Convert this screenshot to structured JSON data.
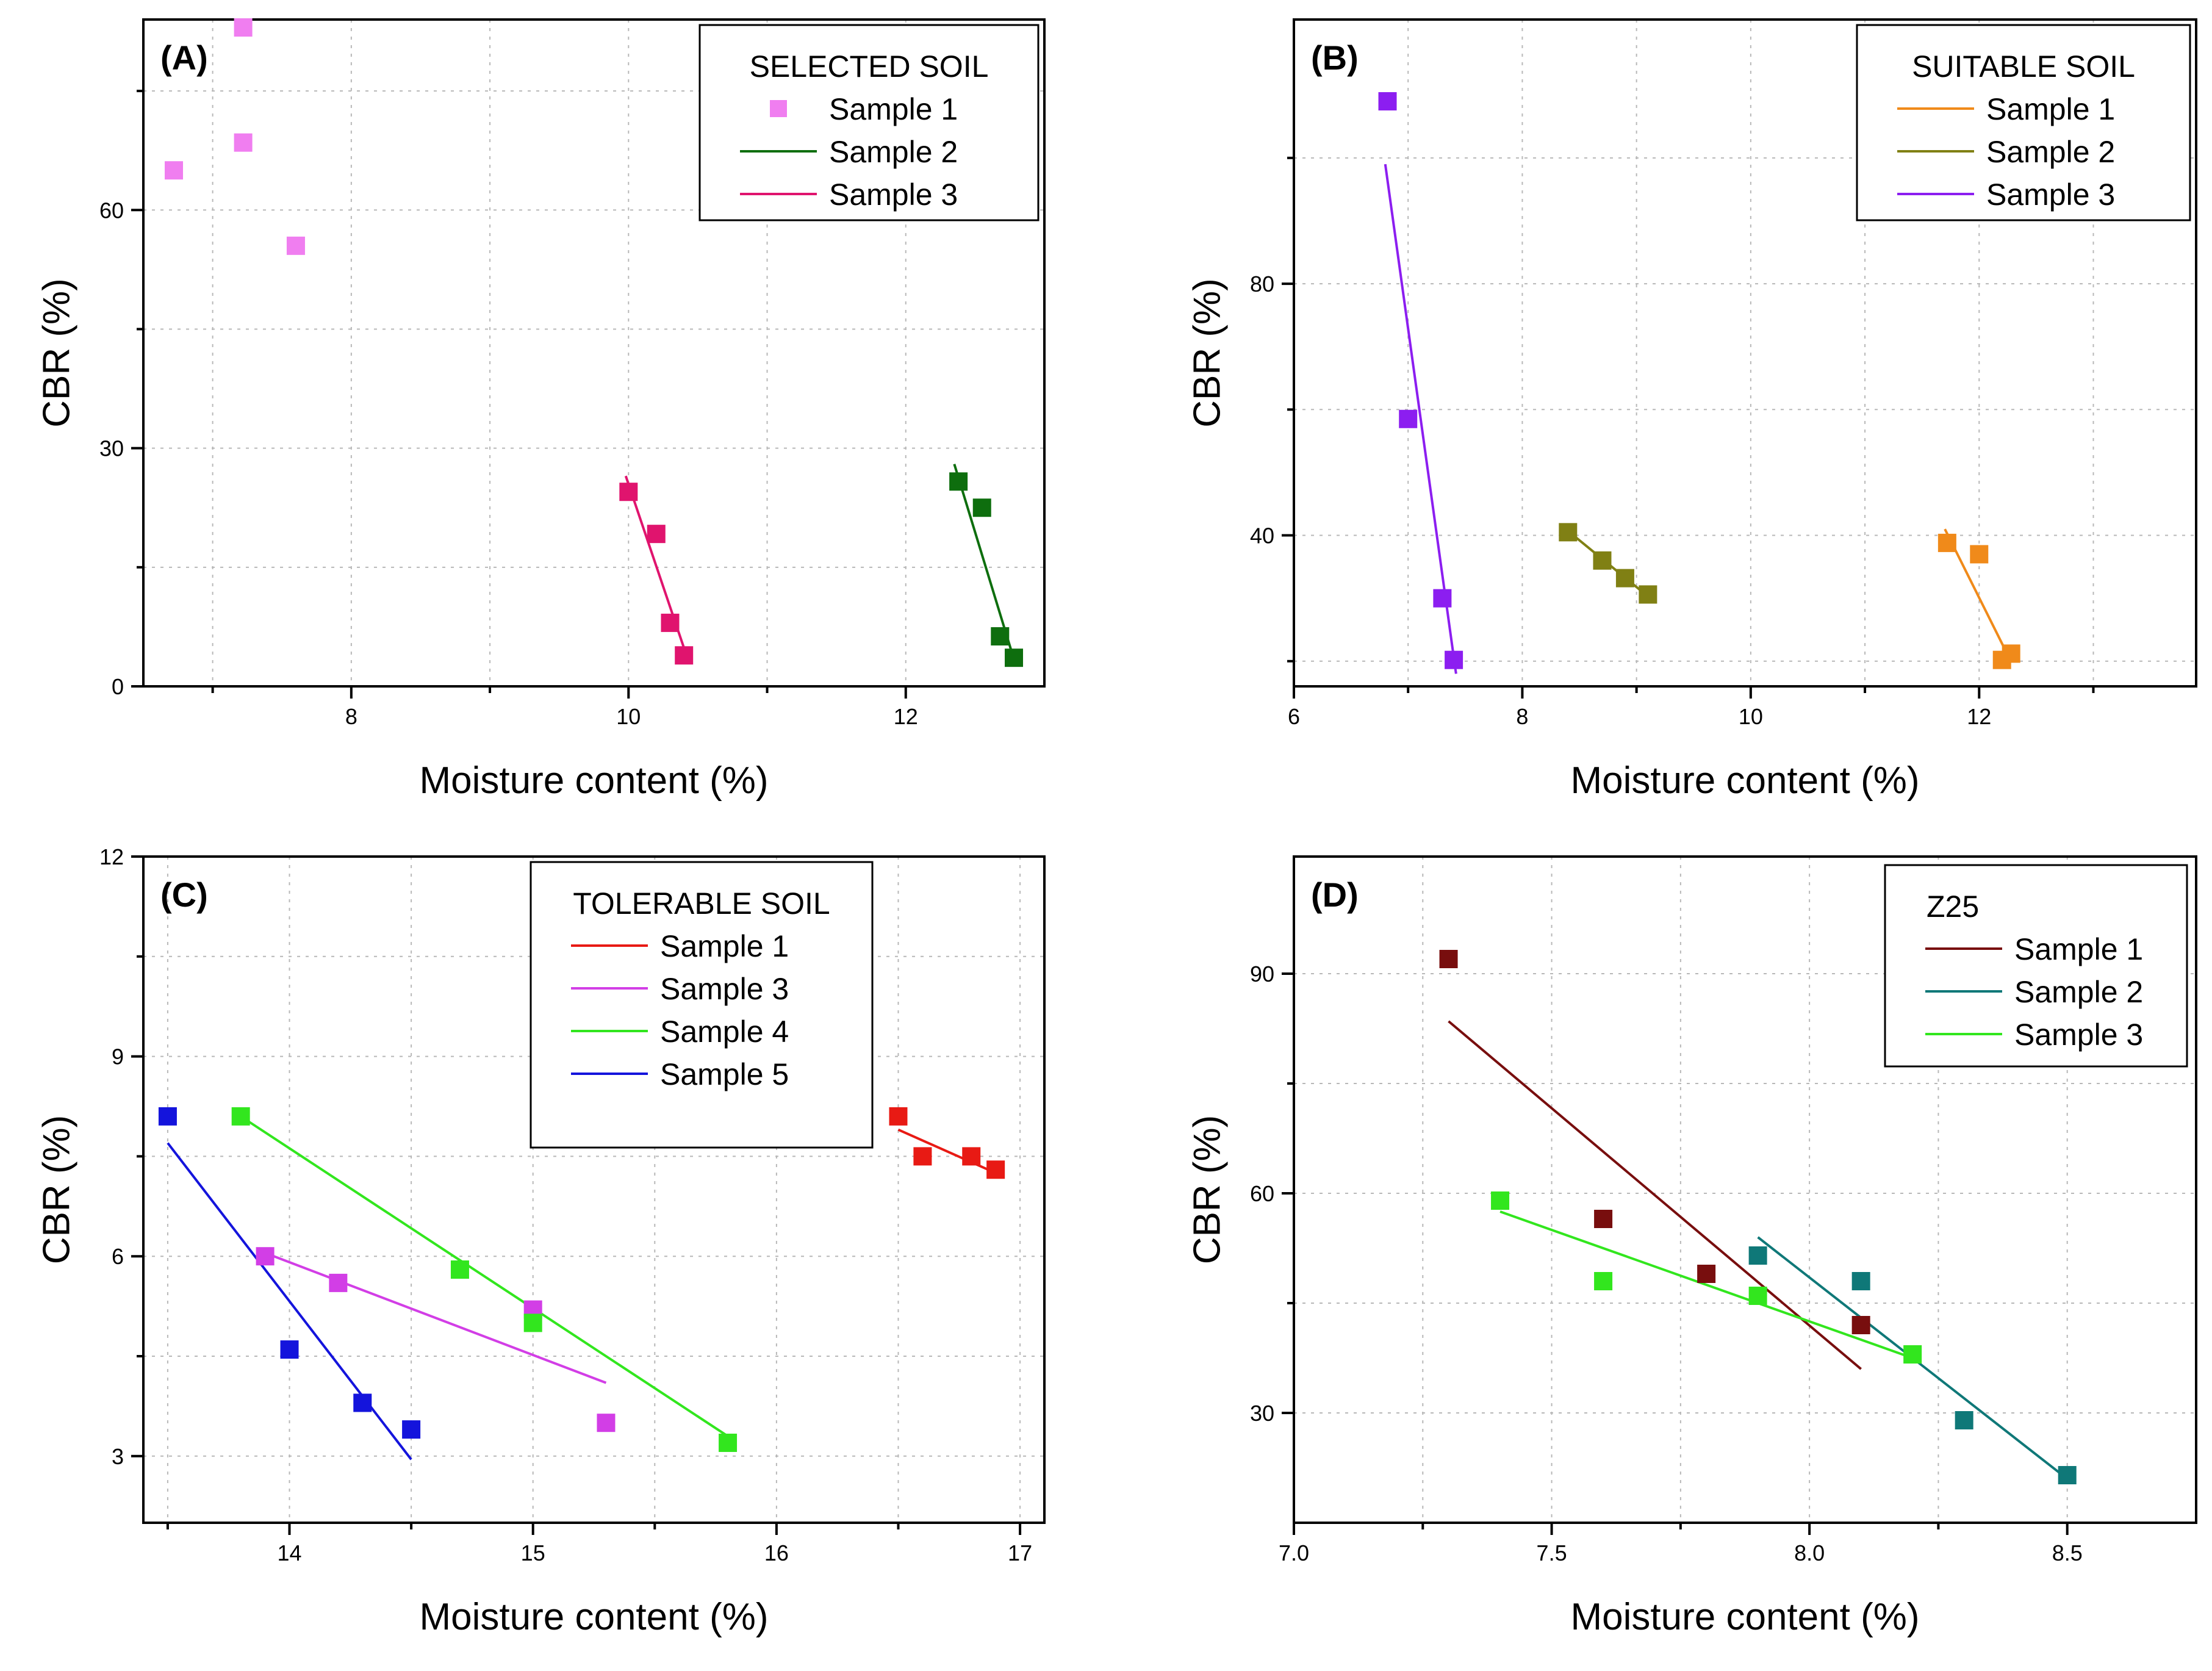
{
  "chart_data": [
    {
      "type": "scatter",
      "panel_label": "(A)",
      "xlabel": "Moisture content (%)",
      "ylabel": "CBR (%)",
      "xlim": [
        6.5,
        13
      ],
      "ylim": [
        0,
        84
      ],
      "x_major_ticks": [
        8,
        10,
        12
      ],
      "x_minor_ticks": [
        7,
        9,
        11
      ],
      "y_major_ticks": [
        0,
        30,
        60
      ],
      "y_minor_ticks": [
        15,
        45,
        75
      ],
      "grid": true,
      "legend_title": "SELECTED SOIL",
      "legend_position": "top-right",
      "series": [
        {
          "name": "Sample 1",
          "color": "#f07ef0",
          "legend": "marker",
          "points": [
            [
              6.72,
              65.0
            ],
            [
              7.22,
              83.0
            ],
            [
              7.22,
              68.5
            ],
            [
              7.6,
              55.5
            ]
          ],
          "fit": null
        },
        {
          "name": "Sample 2",
          "color": "#0e6e0e",
          "legend": "line",
          "points": [
            [
              12.38,
              25.8
            ],
            [
              12.55,
              22.5
            ],
            [
              12.68,
              6.3
            ],
            [
              12.78,
              3.6
            ]
          ],
          "fit": [
            [
              12.35,
              28.0
            ],
            [
              12.77,
              4.0
            ]
          ]
        },
        {
          "name": "Sample 3",
          "color": "#e0146e",
          "legend": "line",
          "points": [
            [
              10.0,
              24.5
            ],
            [
              10.2,
              19.2
            ],
            [
              10.3,
              8.0
            ],
            [
              10.4,
              3.9
            ]
          ],
          "fit": [
            [
              9.98,
              26.5
            ],
            [
              10.42,
              3.8
            ]
          ]
        }
      ]
    },
    {
      "type": "scatter",
      "panel_label": "(B)",
      "xlabel": "Moisture content (%)",
      "ylabel": "CBR (%)",
      "xlim": [
        6,
        13.9
      ],
      "ylim": [
        16,
        122
      ],
      "x_major_ticks": [
        6,
        8,
        10,
        12
      ],
      "x_minor_ticks": [
        7,
        9,
        11,
        13
      ],
      "y_major_ticks": [
        40,
        80
      ],
      "y_minor_ticks": [
        20,
        60,
        100
      ],
      "grid": true,
      "legend_title": "SUITABLE SOIL",
      "legend_position": "top-right",
      "series": [
        {
          "name": "Sample 1",
          "color": "#f08a1a",
          "legend": "line",
          "points": [
            [
              11.72,
              38.8
            ],
            [
              12.0,
              37.0
            ],
            [
              12.2,
              20.2
            ],
            [
              12.28,
              21.2
            ]
          ],
          "fit": [
            [
              11.7,
              41.0
            ],
            [
              12.25,
              21.0
            ]
          ]
        },
        {
          "name": "Sample 2",
          "color": "#808014",
          "legend": "line",
          "points": [
            [
              8.4,
              40.5
            ],
            [
              8.7,
              36.0
            ],
            [
              8.9,
              33.2
            ],
            [
              9.1,
              30.6
            ]
          ],
          "fit": [
            [
              8.38,
              41.0
            ],
            [
              9.1,
              30.3
            ]
          ]
        },
        {
          "name": "Sample 3",
          "color": "#8c1ef0",
          "legend": "line",
          "points": [
            [
              6.82,
              109.0
            ],
            [
              7.0,
              58.5
            ],
            [
              7.3,
              30.0
            ],
            [
              7.4,
              20.2
            ]
          ],
          "fit": [
            [
              6.8,
              99.0
            ],
            [
              7.42,
              18.0
            ]
          ]
        }
      ]
    },
    {
      "type": "scatter",
      "panel_label": "(C)",
      "xlabel": "Moisture content (%)",
      "ylabel": "CBR (%)",
      "xlim": [
        13.4,
        17.1
      ],
      "ylim": [
        2,
        12
      ],
      "x_major_ticks": [
        14,
        15,
        16,
        17
      ],
      "x_minor_ticks": [
        13.5,
        14.5,
        15.5,
        16.5
      ],
      "y_major_ticks": [
        3,
        6,
        9,
        12
      ],
      "y_minor_ticks": [
        4.5,
        7.5,
        10.5
      ],
      "grid": true,
      "legend_title": "TOLERABLE SOIL",
      "legend_position": "top-right",
      "series": [
        {
          "name": "Sample 1",
          "color": "#e81a14",
          "legend": "line",
          "points": [
            [
              16.5,
              8.1
            ],
            [
              16.6,
              7.5
            ],
            [
              16.8,
              7.5
            ],
            [
              16.9,
              7.3
            ]
          ],
          "fit": [
            [
              16.5,
              7.9
            ],
            [
              16.9,
              7.25
            ]
          ]
        },
        {
          "name": "Sample 3",
          "color": "#d23ee6",
          "legend": "line",
          "points": [
            [
              13.9,
              6.0
            ],
            [
              14.2,
              5.6
            ],
            [
              15.0,
              5.2
            ],
            [
              15.3,
              3.5
            ]
          ],
          "fit": [
            [
              13.9,
              6.05
            ],
            [
              15.3,
              4.1
            ]
          ]
        },
        {
          "name": "Sample 4",
          "color": "#32e61e",
          "legend": "line",
          "points": [
            [
              13.8,
              8.1
            ],
            [
              14.7,
              5.8
            ],
            [
              15.0,
              5.0
            ],
            [
              15.8,
              3.2
            ]
          ],
          "fit": [
            [
              13.8,
              8.1
            ],
            [
              15.8,
              3.3
            ]
          ]
        },
        {
          "name": "Sample 5",
          "color": "#1414dc",
          "legend": "line",
          "points": [
            [
              13.5,
              8.1
            ],
            [
              14.0,
              4.6
            ],
            [
              14.3,
              3.8
            ],
            [
              14.5,
              3.4
            ]
          ],
          "fit": [
            [
              13.5,
              7.7
            ],
            [
              14.5,
              2.95
            ]
          ]
        }
      ]
    },
    {
      "type": "scatter",
      "panel_label": "(D)",
      "xlabel": "Moisture content (%)",
      "ylabel": "CBR (%)",
      "xlim": [
        7.0,
        8.75
      ],
      "ylim": [
        15,
        106
      ],
      "x_major_ticks": [
        7.0,
        7.5,
        8.0,
        8.5
      ],
      "x_minor_ticks": [
        7.25,
        7.75,
        8.25
      ],
      "y_major_ticks": [
        30,
        60,
        90
      ],
      "y_minor_ticks": [
        45,
        75
      ],
      "grid": true,
      "legend_title": "Z25",
      "legend_position": "top-right",
      "series": [
        {
          "name": "Sample 1",
          "color": "#780e0e",
          "legend": "line",
          "points": [
            [
              7.3,
              92.0
            ],
            [
              7.6,
              56.5
            ],
            [
              7.8,
              49.0
            ],
            [
              8.1,
              42.0
            ]
          ],
          "fit": [
            [
              7.3,
              83.5
            ],
            [
              8.1,
              36.0
            ]
          ]
        },
        {
          "name": "Sample 2",
          "color": "#0f7878",
          "legend": "line",
          "points": [
            [
              7.9,
              51.5
            ],
            [
              8.1,
              48.0
            ],
            [
              8.3,
              29.0
            ],
            [
              8.5,
              21.5
            ]
          ],
          "fit": [
            [
              7.9,
              54.0
            ],
            [
              8.5,
              21.0
            ]
          ]
        },
        {
          "name": "Sample 3",
          "color": "#32e61e",
          "legend": "line",
          "points": [
            [
              7.4,
              59.0
            ],
            [
              7.6,
              48.0
            ],
            [
              7.9,
              46.0
            ],
            [
              8.2,
              38.0
            ]
          ],
          "fit": [
            [
              7.4,
              57.5
            ],
            [
              8.2,
              37.5
            ]
          ]
        }
      ]
    }
  ]
}
